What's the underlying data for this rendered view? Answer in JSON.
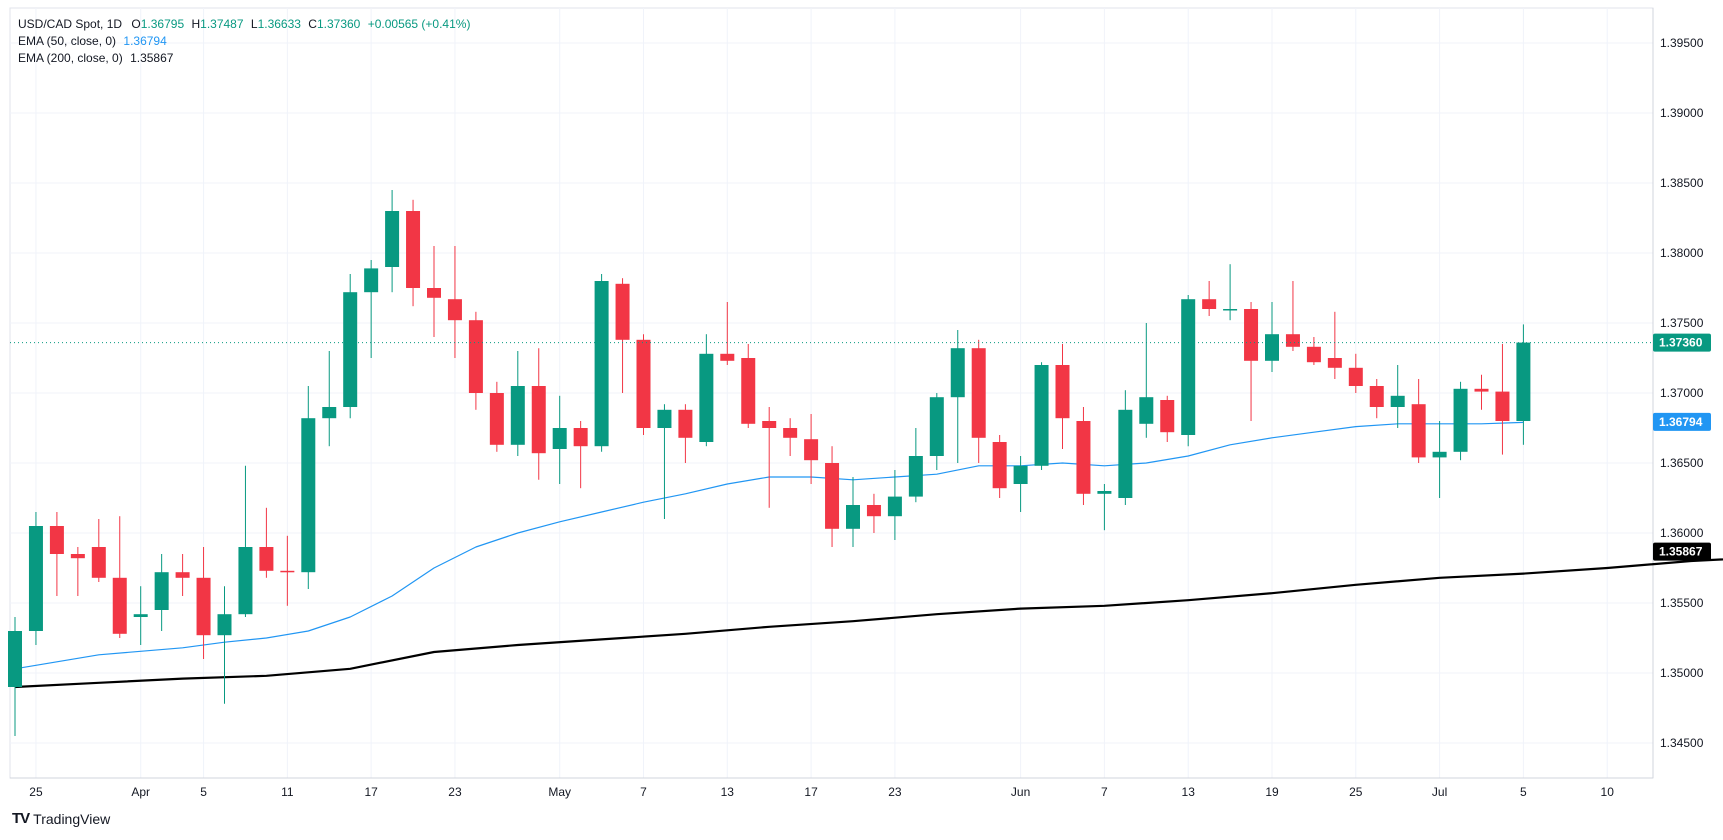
{
  "legend": {
    "symbol": "USD/CAD Spot, 1D",
    "ohlc": {
      "o_label": "O",
      "o": "1.36795",
      "h_label": "H",
      "h": "1.37487",
      "l_label": "L",
      "l": "1.36633",
      "c_label": "C",
      "c": "1.37360",
      "change": "+0.00565 (+0.41%)"
    },
    "ema50": {
      "label": "EMA (50, close, 0)",
      "value": "1.36794"
    },
    "ema200": {
      "label": "EMA (200, close, 0)",
      "value": "1.35867"
    }
  },
  "brand": {
    "icon": "TV",
    "name": "TradingView"
  },
  "colors": {
    "up": "#089981",
    "down": "#f23645",
    "ema50": "#2196f3",
    "ema200": "#000000",
    "grid": "#f0f3fa"
  },
  "chart_data": {
    "type": "candlestick",
    "y_range": [
      1.3425,
      1.3975
    ],
    "y_ticks": [
      "1.34500",
      "1.35000",
      "1.35500",
      "1.36000",
      "1.36500",
      "1.37000",
      "1.37500",
      "1.38000",
      "1.38500",
      "1.39000",
      "1.39500"
    ],
    "x_ticks": [
      {
        "i": 1,
        "label": "25"
      },
      {
        "i": 6,
        "label": "Apr"
      },
      {
        "i": 9,
        "label": "5"
      },
      {
        "i": 13,
        "label": "11"
      },
      {
        "i": 17,
        "label": "17"
      },
      {
        "i": 21,
        "label": "23"
      },
      {
        "i": 26,
        "label": "May"
      },
      {
        "i": 30,
        "label": "7"
      },
      {
        "i": 34,
        "label": "13"
      },
      {
        "i": 38,
        "label": "17"
      },
      {
        "i": 42,
        "label": "23"
      },
      {
        "i": 48,
        "label": "Jun"
      },
      {
        "i": 52,
        "label": "7"
      },
      {
        "i": 56,
        "label": "13"
      },
      {
        "i": 60,
        "label": "19"
      },
      {
        "i": 64,
        "label": "25"
      },
      {
        "i": 68,
        "label": "Jul"
      },
      {
        "i": 72,
        "label": "5"
      },
      {
        "i": 76,
        "label": "10"
      }
    ],
    "candles": [
      [
        1.349,
        1.354,
        1.3455,
        1.353
      ],
      [
        1.353,
        1.3615,
        1.352,
        1.3605
      ],
      [
        1.3605,
        1.3615,
        1.3555,
        1.3585
      ],
      [
        1.3585,
        1.359,
        1.3555,
        1.3582
      ],
      [
        1.359,
        1.361,
        1.3565,
        1.3568
      ],
      [
        1.3568,
        1.3612,
        1.3525,
        1.3528
      ],
      [
        1.354,
        1.3562,
        1.352,
        1.3542
      ],
      [
        1.3545,
        1.3585,
        1.353,
        1.3572
      ],
      [
        1.3572,
        1.3585,
        1.3555,
        1.3568
      ],
      [
        1.3568,
        1.359,
        1.351,
        1.3527
      ],
      [
        1.3527,
        1.3562,
        1.3478,
        1.3542
      ],
      [
        1.3542,
        1.3648,
        1.354,
        1.359
      ],
      [
        1.359,
        1.3618,
        1.3568,
        1.3573
      ],
      [
        1.3573,
        1.3598,
        1.3548,
        1.3572
      ],
      [
        1.3572,
        1.3705,
        1.356,
        1.3682
      ],
      [
        1.3682,
        1.373,
        1.3662,
        1.369
      ],
      [
        1.369,
        1.3785,
        1.3682,
        1.3772
      ],
      [
        1.3772,
        1.3795,
        1.3725,
        1.3789
      ],
      [
        1.379,
        1.3845,
        1.3772,
        1.383
      ],
      [
        1.383,
        1.3838,
        1.3762,
        1.3775
      ],
      [
        1.3775,
        1.3805,
        1.374,
        1.3768
      ],
      [
        1.3767,
        1.3805,
        1.3725,
        1.3752
      ],
      [
        1.3752,
        1.3758,
        1.3688,
        1.37
      ],
      [
        1.37,
        1.3708,
        1.3658,
        1.3663
      ],
      [
        1.3663,
        1.373,
        1.3655,
        1.3705
      ],
      [
        1.3705,
        1.3732,
        1.3638,
        1.3657
      ],
      [
        1.366,
        1.3698,
        1.3635,
        1.3675
      ],
      [
        1.3675,
        1.368,
        1.3632,
        1.3662
      ],
      [
        1.3662,
        1.3785,
        1.3658,
        1.378
      ],
      [
        1.3778,
        1.3782,
        1.37,
        1.3738
      ],
      [
        1.3738,
        1.3742,
        1.367,
        1.3675
      ],
      [
        1.3675,
        1.3692,
        1.361,
        1.3688
      ],
      [
        1.3688,
        1.3692,
        1.365,
        1.3668
      ],
      [
        1.3665,
        1.3742,
        1.3662,
        1.3728
      ],
      [
        1.3728,
        1.3765,
        1.372,
        1.3723
      ],
      [
        1.3725,
        1.3735,
        1.3675,
        1.3678
      ],
      [
        1.368,
        1.369,
        1.3618,
        1.3675
      ],
      [
        1.3675,
        1.3682,
        1.3655,
        1.3668
      ],
      [
        1.3667,
        1.3685,
        1.3635,
        1.3652
      ],
      [
        1.365,
        1.3662,
        1.359,
        1.3603
      ],
      [
        1.3603,
        1.364,
        1.359,
        1.362
      ],
      [
        1.362,
        1.3628,
        1.36,
        1.3612
      ],
      [
        1.3612,
        1.3645,
        1.3595,
        1.3626
      ],
      [
        1.3626,
        1.3675,
        1.3622,
        1.3655
      ],
      [
        1.3655,
        1.37,
        1.3645,
        1.3697
      ],
      [
        1.3697,
        1.3745,
        1.365,
        1.3732
      ],
      [
        1.3732,
        1.3738,
        1.365,
        1.3668
      ],
      [
        1.3665,
        1.367,
        1.3625,
        1.3632
      ],
      [
        1.3635,
        1.3655,
        1.3615,
        1.3648
      ],
      [
        1.3648,
        1.3722,
        1.3645,
        1.372
      ],
      [
        1.372,
        1.3735,
        1.366,
        1.3682
      ],
      [
        1.368,
        1.369,
        1.362,
        1.3628
      ],
      [
        1.3628,
        1.3635,
        1.3602,
        1.363
      ],
      [
        1.3625,
        1.3702,
        1.362,
        1.3688
      ],
      [
        1.3678,
        1.375,
        1.3668,
        1.3697
      ],
      [
        1.3695,
        1.3698,
        1.3665,
        1.3672
      ],
      [
        1.367,
        1.377,
        1.3662,
        1.3767
      ],
      [
        1.3767,
        1.378,
        1.3755,
        1.376
      ],
      [
        1.376,
        1.3792,
        1.3752,
        1.376
      ],
      [
        1.376,
        1.3765,
        1.368,
        1.3723
      ],
      [
        1.3723,
        1.3765,
        1.3715,
        1.3742
      ],
      [
        1.3742,
        1.378,
        1.373,
        1.3733
      ],
      [
        1.3733,
        1.374,
        1.372,
        1.3722
      ],
      [
        1.3725,
        1.3758,
        1.371,
        1.3718
      ],
      [
        1.3718,
        1.3728,
        1.37,
        1.3705
      ],
      [
        1.3705,
        1.371,
        1.3682,
        1.369
      ],
      [
        1.369,
        1.372,
        1.3675,
        1.3698
      ],
      [
        1.3692,
        1.371,
        1.365,
        1.3654
      ],
      [
        1.3654,
        1.368,
        1.3625,
        1.3658
      ],
      [
        1.3658,
        1.3708,
        1.3652,
        1.3703
      ],
      [
        1.3703,
        1.3713,
        1.3688,
        1.3701
      ],
      [
        1.3701,
        1.3735,
        1.3656,
        1.368
      ],
      [
        1.368,
        1.3749,
        1.3663,
        1.3736
      ]
    ],
    "ema50": {
      "label": "EMA (50, close, 0)",
      "points": [
        [
          0,
          1.3503
        ],
        [
          4,
          1.3513
        ],
        [
          8,
          1.3518
        ],
        [
          10,
          1.3522
        ],
        [
          12,
          1.3525
        ],
        [
          14,
          1.353
        ],
        [
          16,
          1.354
        ],
        [
          18,
          1.3555
        ],
        [
          20,
          1.3575
        ],
        [
          22,
          1.359
        ],
        [
          24,
          1.36
        ],
        [
          26,
          1.3608
        ],
        [
          28,
          1.3615
        ],
        [
          30,
          1.3622
        ],
        [
          32,
          1.3628
        ],
        [
          34,
          1.3635
        ],
        [
          36,
          1.364
        ],
        [
          38,
          1.364
        ],
        [
          40,
          1.3638
        ],
        [
          42,
          1.364
        ],
        [
          44,
          1.3642
        ],
        [
          46,
          1.3648
        ],
        [
          48,
          1.3648
        ],
        [
          50,
          1.365
        ],
        [
          52,
          1.3648
        ],
        [
          54,
          1.365
        ],
        [
          56,
          1.3655
        ],
        [
          58,
          1.3663
        ],
        [
          60,
          1.3668
        ],
        [
          62,
          1.3672
        ],
        [
          64,
          1.3676
        ],
        [
          66,
          1.3678
        ],
        [
          68,
          1.3678
        ],
        [
          70,
          1.3678
        ],
        [
          72,
          1.3679
        ]
      ]
    },
    "ema200": {
      "label": "EMA (200, close, 0)",
      "points": [
        [
          0,
          1.349
        ],
        [
          4,
          1.3493
        ],
        [
          8,
          1.3496
        ],
        [
          12,
          1.3498
        ],
        [
          16,
          1.3503
        ],
        [
          20,
          1.3515
        ],
        [
          24,
          1.352
        ],
        [
          28,
          1.3524
        ],
        [
          32,
          1.3528
        ],
        [
          36,
          1.3533
        ],
        [
          40,
          1.3537
        ],
        [
          44,
          1.3542
        ],
        [
          48,
          1.3546
        ],
        [
          52,
          1.3548
        ],
        [
          56,
          1.3552
        ],
        [
          60,
          1.3557
        ],
        [
          64,
          1.3563
        ],
        [
          68,
          1.3568
        ],
        [
          72,
          1.3571
        ],
        [
          76,
          1.3575
        ],
        [
          80,
          1.358
        ],
        [
          84,
          1.3583
        ],
        [
          88,
          1.3587
        ]
      ]
    },
    "price_line": "1.37360",
    "ema50_badge": "1.36794",
    "ema200_badge": "1.35867"
  }
}
